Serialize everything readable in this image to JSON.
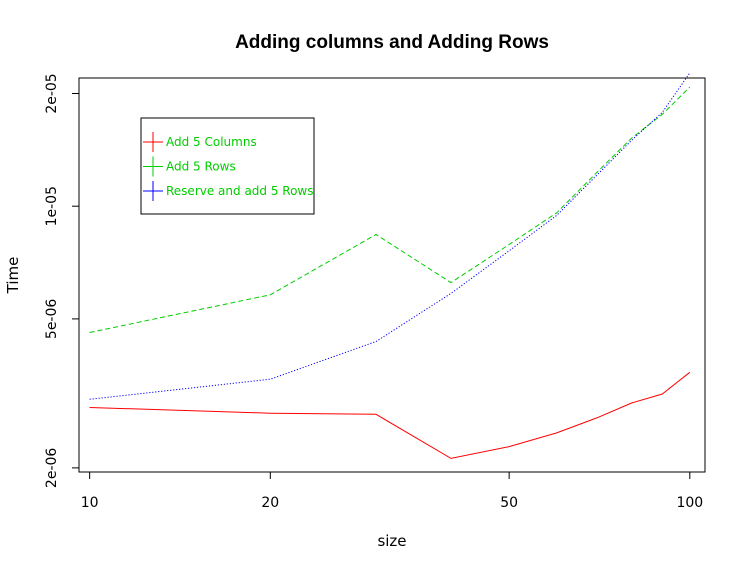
{
  "chart_data": {
    "type": "line",
    "title": "Adding columns and Adding Rows",
    "xlabel": "size",
    "ylabel": "Time",
    "x_scale": "log",
    "y_scale": "log",
    "xlim": [
      9.6,
      106
    ],
    "ylim": [
      1.95e-06,
      2.2e-05
    ],
    "x_ticks": [
      10,
      20,
      50,
      100
    ],
    "x_tick_labels": [
      "10",
      "20",
      "50",
      "100"
    ],
    "y_ticks": [
      2e-06,
      5e-06,
      1e-05,
      2e-05
    ],
    "y_tick_labels": [
      "2e-06",
      "5e-06",
      "1e-05",
      "2e-05"
    ],
    "grid": false,
    "legend_position": "top-left",
    "series": [
      {
        "name": "Add 5 Columns",
        "color": "#ff0000",
        "dash": "solid",
        "x": [
          10,
          20,
          30,
          40,
          50,
          60,
          70,
          80,
          90,
          100
        ],
        "y": [
          2.9e-06,
          2.8e-06,
          2.78e-06,
          2.12e-06,
          2.28e-06,
          2.48e-06,
          2.72e-06,
          2.98e-06,
          3.15e-06,
          3.6e-06
        ]
      },
      {
        "name": "Add 5 Rows",
        "color": "#00cd00",
        "dash": "dashed",
        "x": [
          10,
          20,
          30,
          40,
          50,
          60,
          70,
          80,
          90,
          100
        ],
        "y": [
          4.6e-06,
          5.8e-06,
          8.4e-06,
          6.25e-06,
          7.9e-06,
          9.6e-06,
          1.23e-05,
          1.52e-05,
          1.76e-05,
          2.08e-05
        ]
      },
      {
        "name": "Reserve and add 5 Rows",
        "color": "#0000ff",
        "dash": "dotted",
        "x": [
          10,
          20,
          30,
          40,
          50,
          60,
          70,
          80,
          90,
          100
        ],
        "y": [
          3.05e-06,
          3.45e-06,
          4.35e-06,
          5.85e-06,
          7.6e-06,
          9.45e-06,
          1.21e-05,
          1.5e-05,
          1.78e-05,
          2.27e-05
        ]
      }
    ]
  }
}
